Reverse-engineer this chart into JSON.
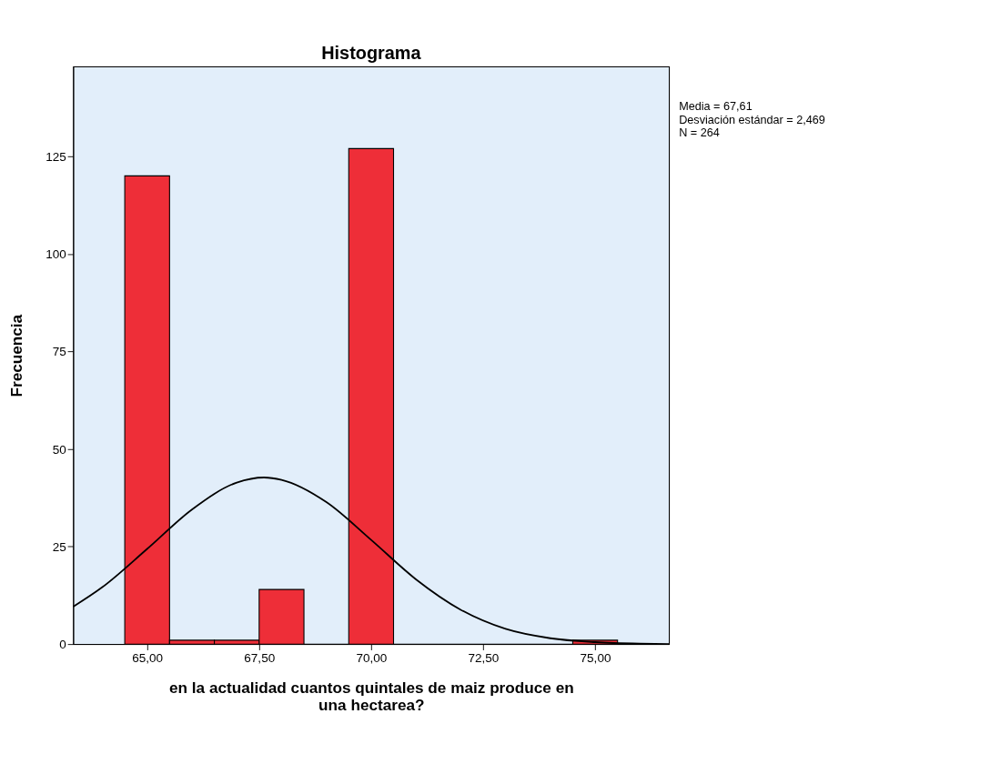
{
  "chart_data": {
    "type": "histogram",
    "title": "Histograma",
    "xlabel": "en la actualidad cuantos quintales de maiz produce en una hectarea?",
    "ylabel": "Frecuencia",
    "annotations": [
      "Media = 67,61",
      "Desviación estándar = 2,469",
      "N = 264"
    ],
    "series": [
      {
        "bins": [
          64.5,
          65.5,
          66.5,
          67.5,
          68.5,
          69.5,
          70.5,
          71.5,
          72.5,
          73.5,
          74.5,
          75.5
        ],
        "values": [
          120,
          1,
          1,
          14,
          0,
          127,
          0,
          0,
          0,
          0,
          1
        ],
        "color": "#ee2e38"
      },
      {
        "type": "line",
        "x": [
          63.35,
          64,
          65,
          66,
          67,
          67.61,
          68,
          69,
          70,
          71,
          72,
          73,
          74,
          75,
          76,
          76.65
        ],
        "values": [
          9.6,
          14.6,
          24.4,
          34.5,
          41.4,
          42.7,
          42.1,
          36.4,
          26.7,
          16.6,
          8.8,
          3.9,
          1.5,
          0.5,
          0.1,
          0
        ],
        "color": "#000000"
      }
    ],
    "xlim": [
      63.35,
      76.65
    ],
    "ylim": [
      0,
      148
    ],
    "xticks": [
      {
        "value": 65,
        "label": "65,00"
      },
      {
        "value": 67.5,
        "label": "67,50"
      },
      {
        "value": 70,
        "label": "70,00"
      },
      {
        "value": 72.5,
        "label": "72,50"
      },
      {
        "value": 75,
        "label": "75,00"
      }
    ],
    "yticks": [
      0,
      25,
      50,
      75,
      100,
      125
    ],
    "grid": false
  }
}
